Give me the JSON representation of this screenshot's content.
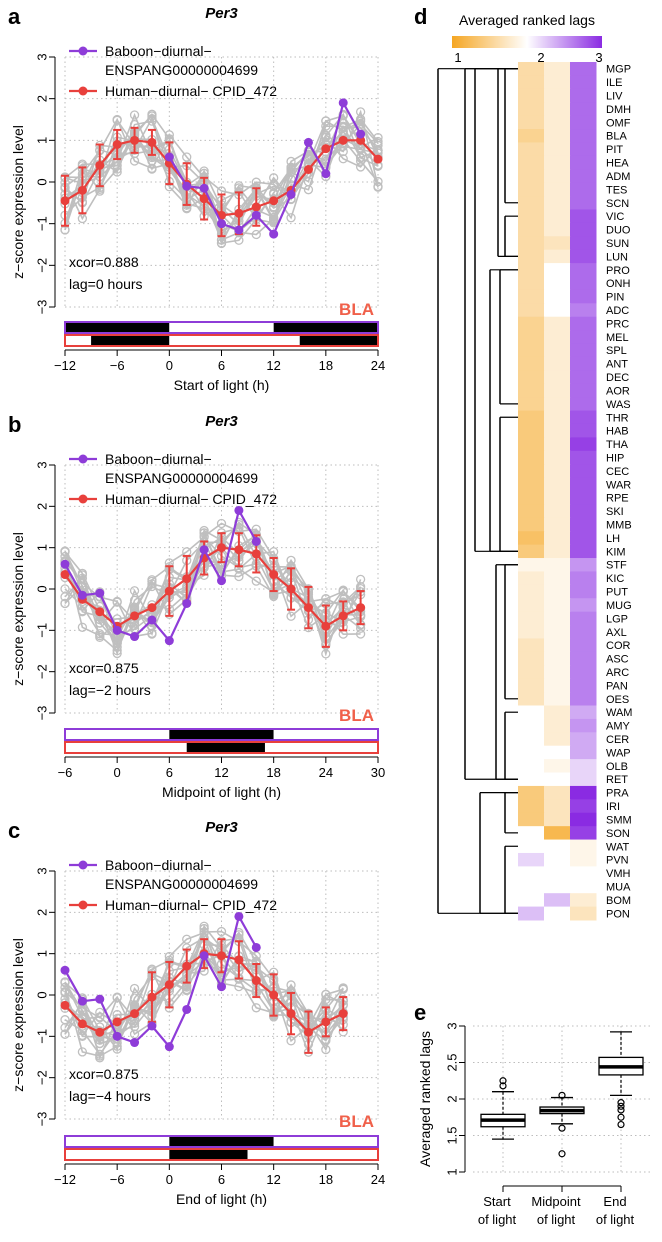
{
  "colors": {
    "baboon": "#8e3cd8",
    "human": "#e8403c",
    "bg_gray": "#bfbfbf",
    "tissue": "#f0604a",
    "heat_low": "#f5a623",
    "heat_mid": "#ffffff",
    "heat_high": "#8a2be2"
  },
  "chart_data": [
    {
      "type": "line",
      "panel": "a",
      "title": "Per3",
      "xlabel": "Start of light (h)",
      "ylabel": "z−score expression level",
      "xlim": [
        -12,
        24
      ],
      "ylim": [
        -3,
        3
      ],
      "xticks": [
        -12,
        -6,
        0,
        6,
        12,
        18,
        24
      ],
      "xtick_labels": [
        "−12",
        "−6",
        "0",
        "6",
        "12",
        "18",
        "24"
      ],
      "yticks": [
        -3,
        -2,
        -1,
        0,
        1,
        2,
        3
      ],
      "ytick_labels": [
        "−3",
        "−2",
        "−1",
        "0",
        "1",
        "2",
        "3"
      ],
      "legend": [
        "Baboon−diurnal−",
        "ENSPANG00000004699",
        "Human−diurnal− CPID_472"
      ],
      "xcor": "xcor=0.888",
      "lag": "lag=0 hours",
      "tissue": "BLA",
      "series": [
        {
          "name": "Baboon−diurnal− ENSPANG00000004699",
          "x": [
            0,
            2,
            4,
            6,
            8,
            10,
            12,
            14,
            16,
            18,
            20,
            22
          ],
          "y": [
            0.6,
            -0.1,
            -0.15,
            -1.0,
            -1.15,
            -0.8,
            -1.25,
            -0.3,
            0.95,
            0.2,
            1.9,
            1.15
          ]
        },
        {
          "name": "Human−diurnal− CPID_472",
          "x": [
            -12,
            -10,
            -8,
            -6,
            -4,
            -2,
            0,
            2,
            4,
            6,
            8,
            10,
            12,
            14,
            16,
            18,
            20,
            22,
            24
          ],
          "y": [
            -0.45,
            -0.2,
            0.4,
            0.9,
            1.0,
            0.95,
            0.45,
            -0.05,
            -0.4,
            -0.8,
            -0.75,
            -0.6,
            -0.45,
            -0.2,
            0.3,
            0.8,
            1.0,
            1.0,
            0.55
          ],
          "err": [
            0.6,
            0.55,
            0.5,
            0.35,
            0.3,
            0.3,
            0.5,
            0.5,
            0.5,
            0.5,
            0.5,
            0.45,
            0,
            0,
            0,
            0,
            0,
            0,
            0
          ]
        }
      ],
      "light_bars": {
        "baboon": [
          {
            "start": -12,
            "end": 0,
            "dark": true
          },
          {
            "start": 0,
            "end": 12,
            "dark": false
          },
          {
            "start": 12,
            "end": 24,
            "dark": true
          }
        ],
        "human": [
          {
            "start": -12,
            "end": -9,
            "dark": false
          },
          {
            "start": -9,
            "end": 0,
            "dark": true
          },
          {
            "start": 0,
            "end": 15,
            "dark": false
          },
          {
            "start": 15,
            "end": 24,
            "dark": true
          }
        ]
      }
    },
    {
      "type": "line",
      "panel": "b",
      "title": "Per3",
      "xlabel": "Midpoint of light (h)",
      "ylabel": "z−score expression level",
      "xlim": [
        -6,
        30
      ],
      "ylim": [
        -3,
        3
      ],
      "xticks": [
        -6,
        0,
        6,
        12,
        18,
        24,
        30
      ],
      "xtick_labels": [
        "−6",
        "0",
        "6",
        "12",
        "18",
        "24",
        "30"
      ],
      "yticks": [
        -3,
        -2,
        -1,
        0,
        1,
        2,
        3
      ],
      "ytick_labels": [
        "−3",
        "−2",
        "−1",
        "0",
        "1",
        "2",
        "3"
      ],
      "legend": [
        "Baboon−diurnal−",
        "ENSPANG00000004699",
        "Human−diurnal− CPID_472"
      ],
      "xcor": "xcor=0.875",
      "lag": "lag=−2 hours",
      "tissue": "BLA",
      "series": [
        {
          "name": "Baboon−diurnal− ENSPANG00000004699",
          "x": [
            -6,
            -4,
            -2,
            0,
            2,
            4,
            6,
            8,
            10,
            12,
            14,
            16
          ],
          "y": [
            0.6,
            -0.15,
            -0.1,
            -1.0,
            -1.15,
            -0.75,
            -1.25,
            -0.35,
            0.95,
            0.2,
            1.9,
            1.15
          ]
        },
        {
          "name": "Human−diurnal− CPID_472",
          "x": [
            -6,
            -4,
            -2,
            0,
            2,
            4,
            6,
            8,
            10,
            12,
            14,
            16,
            18,
            20,
            22,
            24,
            26,
            28
          ],
          "y": [
            0.35,
            -0.25,
            -0.55,
            -0.9,
            -0.65,
            -0.45,
            -0.05,
            0.25,
            0.75,
            1.0,
            0.95,
            0.85,
            0.35,
            0.0,
            -0.45,
            -0.9,
            -0.65,
            -0.45
          ],
          "err": [
            0,
            0,
            0,
            0,
            0,
            0,
            0.6,
            0.55,
            0.4,
            0.35,
            0.4,
            0.45,
            0.4,
            0.5,
            0.5,
            0.5,
            0.35,
            0.4
          ]
        }
      ],
      "light_bars": {
        "baboon": [
          {
            "start": -6,
            "end": 6,
            "dark": false
          },
          {
            "start": 6,
            "end": 18,
            "dark": true
          },
          {
            "start": 18,
            "end": 30,
            "dark": false
          }
        ],
        "human": [
          {
            "start": -6,
            "end": 8,
            "dark": false
          },
          {
            "start": 8,
            "end": 17,
            "dark": true
          },
          {
            "start": 17,
            "end": 30,
            "dark": false
          }
        ]
      }
    },
    {
      "type": "line",
      "panel": "c",
      "title": "Per3",
      "xlabel": "End of light (h)",
      "ylabel": "z−score expression level",
      "xlim": [
        -12,
        24
      ],
      "ylim": [
        -3,
        3
      ],
      "xticks": [
        -12,
        -6,
        0,
        6,
        12,
        18,
        24
      ],
      "xtick_labels": [
        "−12",
        "−6",
        "0",
        "6",
        "12",
        "18",
        "24"
      ],
      "yticks": [
        -3,
        -2,
        -1,
        0,
        1,
        2,
        3
      ],
      "ytick_labels": [
        "−3",
        "−2",
        "−1",
        "0",
        "1",
        "2",
        "3"
      ],
      "legend": [
        "Baboon−diurnal−",
        "ENSPANG00000004699",
        "Human−diurnal− CPID_472"
      ],
      "xcor": "xcor=0.875",
      "lag": "lag=−4 hours",
      "tissue": "BLA",
      "series": [
        {
          "name": "Baboon−diurnal− ENSPANG00000004699",
          "x": [
            -12,
            -10,
            -8,
            -6,
            -4,
            -2,
            0,
            2,
            4,
            6,
            8,
            10
          ],
          "y": [
            0.6,
            -0.15,
            -0.1,
            -1.0,
            -1.15,
            -0.75,
            -1.25,
            -0.35,
            0.95,
            0.2,
            1.9,
            1.15
          ]
        },
        {
          "name": "Human−diurnal− CPID_472",
          "x": [
            -12,
            -10,
            -8,
            -6,
            -4,
            -2,
            0,
            2,
            4,
            6,
            8,
            10,
            12,
            14,
            16,
            18,
            20
          ],
          "y": [
            -0.25,
            -0.7,
            -0.9,
            -0.65,
            -0.45,
            -0.05,
            0.25,
            0.7,
            1.0,
            0.95,
            0.85,
            0.35,
            0.0,
            -0.45,
            -0.9,
            -0.65,
            -0.45
          ],
          "err": [
            0,
            0,
            0,
            0,
            0,
            0.6,
            0.55,
            0.4,
            0.35,
            0.4,
            0.45,
            0.4,
            0.5,
            0.5,
            0.5,
            0.35,
            0.4
          ]
        }
      ],
      "light_bars": {
        "baboon": [
          {
            "start": -12,
            "end": 0,
            "dark": false
          },
          {
            "start": 0,
            "end": 12,
            "dark": true
          },
          {
            "start": 12,
            "end": 24,
            "dark": false
          }
        ],
        "human": [
          {
            "start": -12,
            "end": 0,
            "dark": false
          },
          {
            "start": 0,
            "end": 9,
            "dark": true
          },
          {
            "start": 9,
            "end": 24,
            "dark": false
          }
        ]
      }
    },
    {
      "type": "heatmap",
      "panel": "d",
      "title": "Averaged ranked lags",
      "scale_ticks": [
        "1",
        "2",
        "3"
      ],
      "columns": [
        "Start of light",
        "Midpoint of light",
        "End of light"
      ],
      "rows": [
        "MGP",
        "ILE",
        "LIV",
        "DMH",
        "OMF",
        "BLA",
        "PIT",
        "HEA",
        "ADM",
        "TES",
        "SCN",
        "VIC",
        "DUO",
        "SUN",
        "LUN",
        "PRO",
        "ONH",
        "PIN",
        "ADC",
        "PRC",
        "MEL",
        "SPL",
        "ANT",
        "DEC",
        "AOR",
        "WAS",
        "THR",
        "HAB",
        "THA",
        "HIP",
        "CEC",
        "WAR",
        "RPE",
        "SKI",
        "MMB",
        "LH",
        "KIM",
        "STF",
        "KIC",
        "PUT",
        "MUG",
        "LGP",
        "AXL",
        "COR",
        "ASC",
        "ARC",
        "PAN",
        "OES",
        "WAM",
        "AMY",
        "CER",
        "WAP",
        "OLB",
        "RET",
        "PRA",
        "IRI",
        "SMM",
        "SON",
        "WAT",
        "PVN",
        "VMH",
        "MUA",
        "BOM",
        "PON"
      ],
      "values": [
        [
          1.6,
          1.8,
          2.7
        ],
        [
          1.6,
          1.8,
          2.7
        ],
        [
          1.6,
          1.8,
          2.7
        ],
        [
          1.6,
          1.8,
          2.7
        ],
        [
          1.6,
          1.8,
          2.7
        ],
        [
          1.5,
          1.8,
          2.7
        ],
        [
          1.6,
          1.8,
          2.7
        ],
        [
          1.6,
          1.8,
          2.7
        ],
        [
          1.6,
          1.8,
          2.7
        ],
        [
          1.6,
          1.8,
          2.7
        ],
        [
          1.6,
          1.8,
          2.7
        ],
        [
          1.6,
          1.8,
          2.8
        ],
        [
          1.6,
          1.8,
          2.8
        ],
        [
          1.6,
          1.7,
          2.8
        ],
        [
          1.6,
          1.8,
          2.8
        ],
        [
          1.6,
          2.0,
          2.7
        ],
        [
          1.6,
          2.0,
          2.7
        ],
        [
          1.6,
          2.0,
          2.7
        ],
        [
          1.6,
          2.0,
          2.6
        ],
        [
          1.5,
          1.8,
          2.7
        ],
        [
          1.5,
          1.8,
          2.7
        ],
        [
          1.5,
          1.8,
          2.7
        ],
        [
          1.5,
          1.8,
          2.7
        ],
        [
          1.5,
          1.8,
          2.7
        ],
        [
          1.5,
          1.8,
          2.7
        ],
        [
          1.5,
          1.8,
          2.7
        ],
        [
          1.4,
          1.8,
          2.8
        ],
        [
          1.4,
          1.8,
          2.8
        ],
        [
          1.4,
          1.8,
          2.9
        ],
        [
          1.4,
          1.8,
          2.8
        ],
        [
          1.4,
          1.8,
          2.8
        ],
        [
          1.4,
          1.8,
          2.8
        ],
        [
          1.4,
          1.8,
          2.8
        ],
        [
          1.4,
          1.8,
          2.8
        ],
        [
          1.4,
          1.8,
          2.8
        ],
        [
          1.3,
          1.8,
          2.8
        ],
        [
          1.4,
          1.8,
          2.8
        ],
        [
          1.9,
          1.9,
          2.5
        ],
        [
          1.8,
          1.9,
          2.6
        ],
        [
          1.8,
          1.9,
          2.6
        ],
        [
          1.8,
          1.9,
          2.5
        ],
        [
          1.8,
          1.9,
          2.6
        ],
        [
          1.8,
          1.9,
          2.6
        ],
        [
          1.7,
          1.9,
          2.6
        ],
        [
          1.7,
          1.9,
          2.6
        ],
        [
          1.7,
          1.9,
          2.6
        ],
        [
          1.7,
          1.9,
          2.6
        ],
        [
          1.7,
          1.9,
          2.6
        ],
        [
          2.0,
          1.8,
          2.4
        ],
        [
          2.0,
          1.8,
          2.5
        ],
        [
          2.0,
          1.8,
          2.4
        ],
        [
          2.0,
          2.0,
          2.4
        ],
        [
          2.0,
          1.9,
          2.2
        ],
        [
          2.0,
          2.0,
          2.2
        ],
        [
          1.4,
          1.7,
          3.0
        ],
        [
          1.4,
          1.7,
          2.9
        ],
        [
          1.4,
          1.7,
          3.0
        ],
        [
          2.0,
          1.2,
          2.9
        ],
        [
          2.0,
          2.0,
          1.9
        ],
        [
          2.2,
          2.0,
          1.9
        ],
        [
          2.0,
          2.0,
          2.0
        ],
        [
          2.0,
          2.0,
          2.0
        ],
        [
          2.0,
          2.3,
          1.8
        ],
        [
          2.3,
          2.0,
          1.7
        ]
      ]
    },
    {
      "type": "box",
      "panel": "e",
      "ylabel": "Averaged ranked lags",
      "ylim": [
        1,
        3
      ],
      "yticks": [
        1,
        1.5,
        2,
        2.5,
        3
      ],
      "ytick_labels": [
        "1",
        "1.5",
        "2",
        "2.5",
        "3"
      ],
      "categories": [
        [
          "Start",
          "of light"
        ],
        [
          "Midpoint",
          "of light"
        ],
        [
          "End",
          "of light"
        ]
      ],
      "boxes": [
        {
          "min": 1.45,
          "q1": 1.62,
          "median": 1.71,
          "q3": 1.79,
          "max": 2.1,
          "outliers": [
            2.18,
            2.25
          ]
        },
        {
          "min": 1.66,
          "q1": 1.8,
          "median": 1.84,
          "q3": 1.89,
          "max": 2.02,
          "outliers": [
            2.05,
            1.6,
            1.25
          ]
        },
        {
          "min": 2.05,
          "q1": 2.33,
          "median": 2.44,
          "q3": 2.57,
          "max": 2.92,
          "outliers": [
            1.95,
            1.9,
            1.85,
            1.75,
            1.65
          ]
        }
      ]
    }
  ]
}
